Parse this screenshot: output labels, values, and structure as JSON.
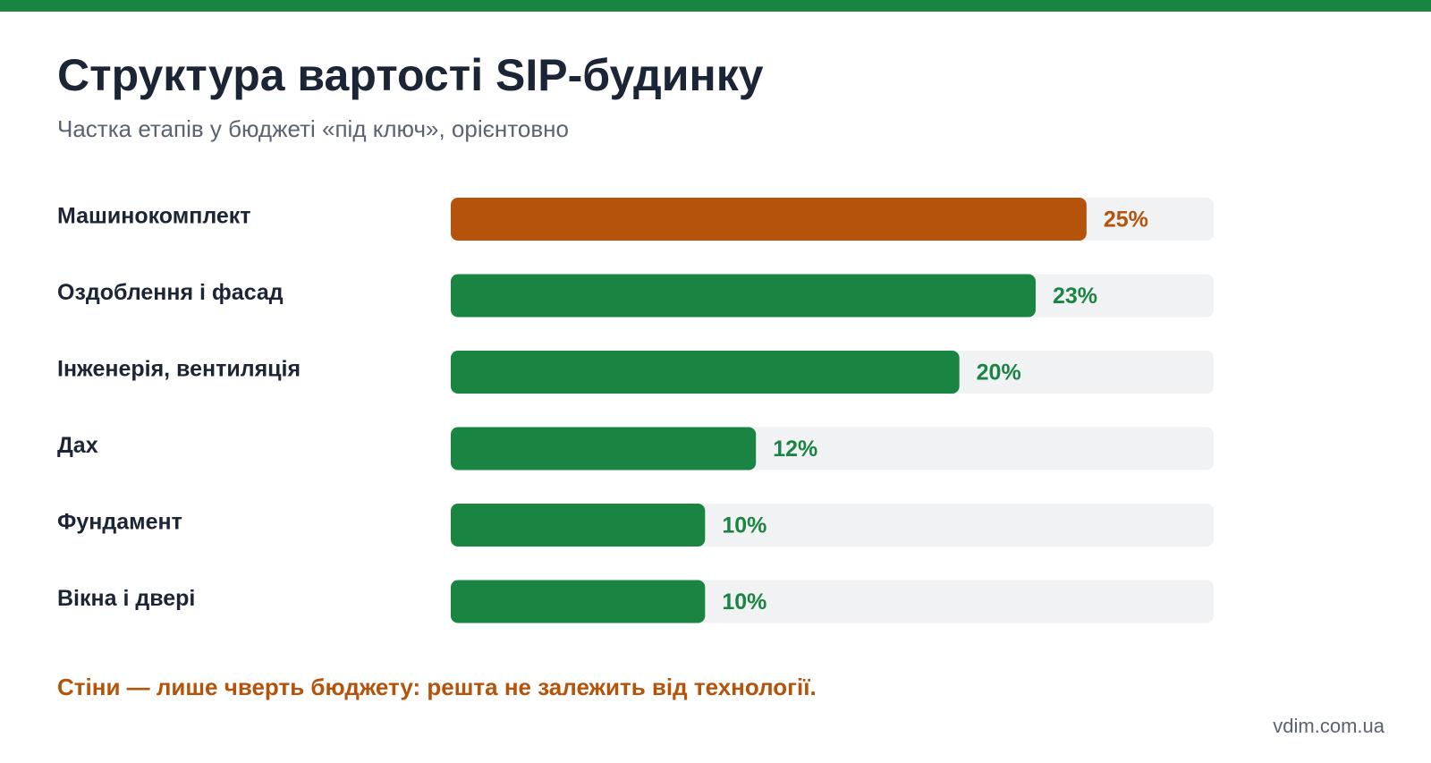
{
  "header": {
    "title": "Структура вартості SIP-будинку",
    "subtitle": "Частка етапів у бюджеті «під ключ», орієнтовно"
  },
  "chart_data": {
    "type": "bar",
    "orientation": "horizontal",
    "categories": [
      "Машинокомплект",
      "Оздоблення і фасад",
      "Інженерія, вентиляція",
      "Дах",
      "Фундамент",
      "Вікна і двері"
    ],
    "values": [
      25,
      23,
      20,
      12,
      10,
      10
    ],
    "value_labels": [
      "25%",
      "23%",
      "20%",
      "12%",
      "10%",
      "10%"
    ],
    "xlim": [
      0,
      30
    ],
    "highlight_index": 0,
    "grid": false,
    "legend": "none"
  },
  "colors": {
    "accent": "#1a8442",
    "highlight": "#b5530a",
    "track": "#f1f2f4",
    "label": "#1b2535"
  },
  "footer": {
    "note": "Стіни — лише чверть бюджету: решта не залежить від технології.",
    "source": "vdim.com.ua"
  }
}
